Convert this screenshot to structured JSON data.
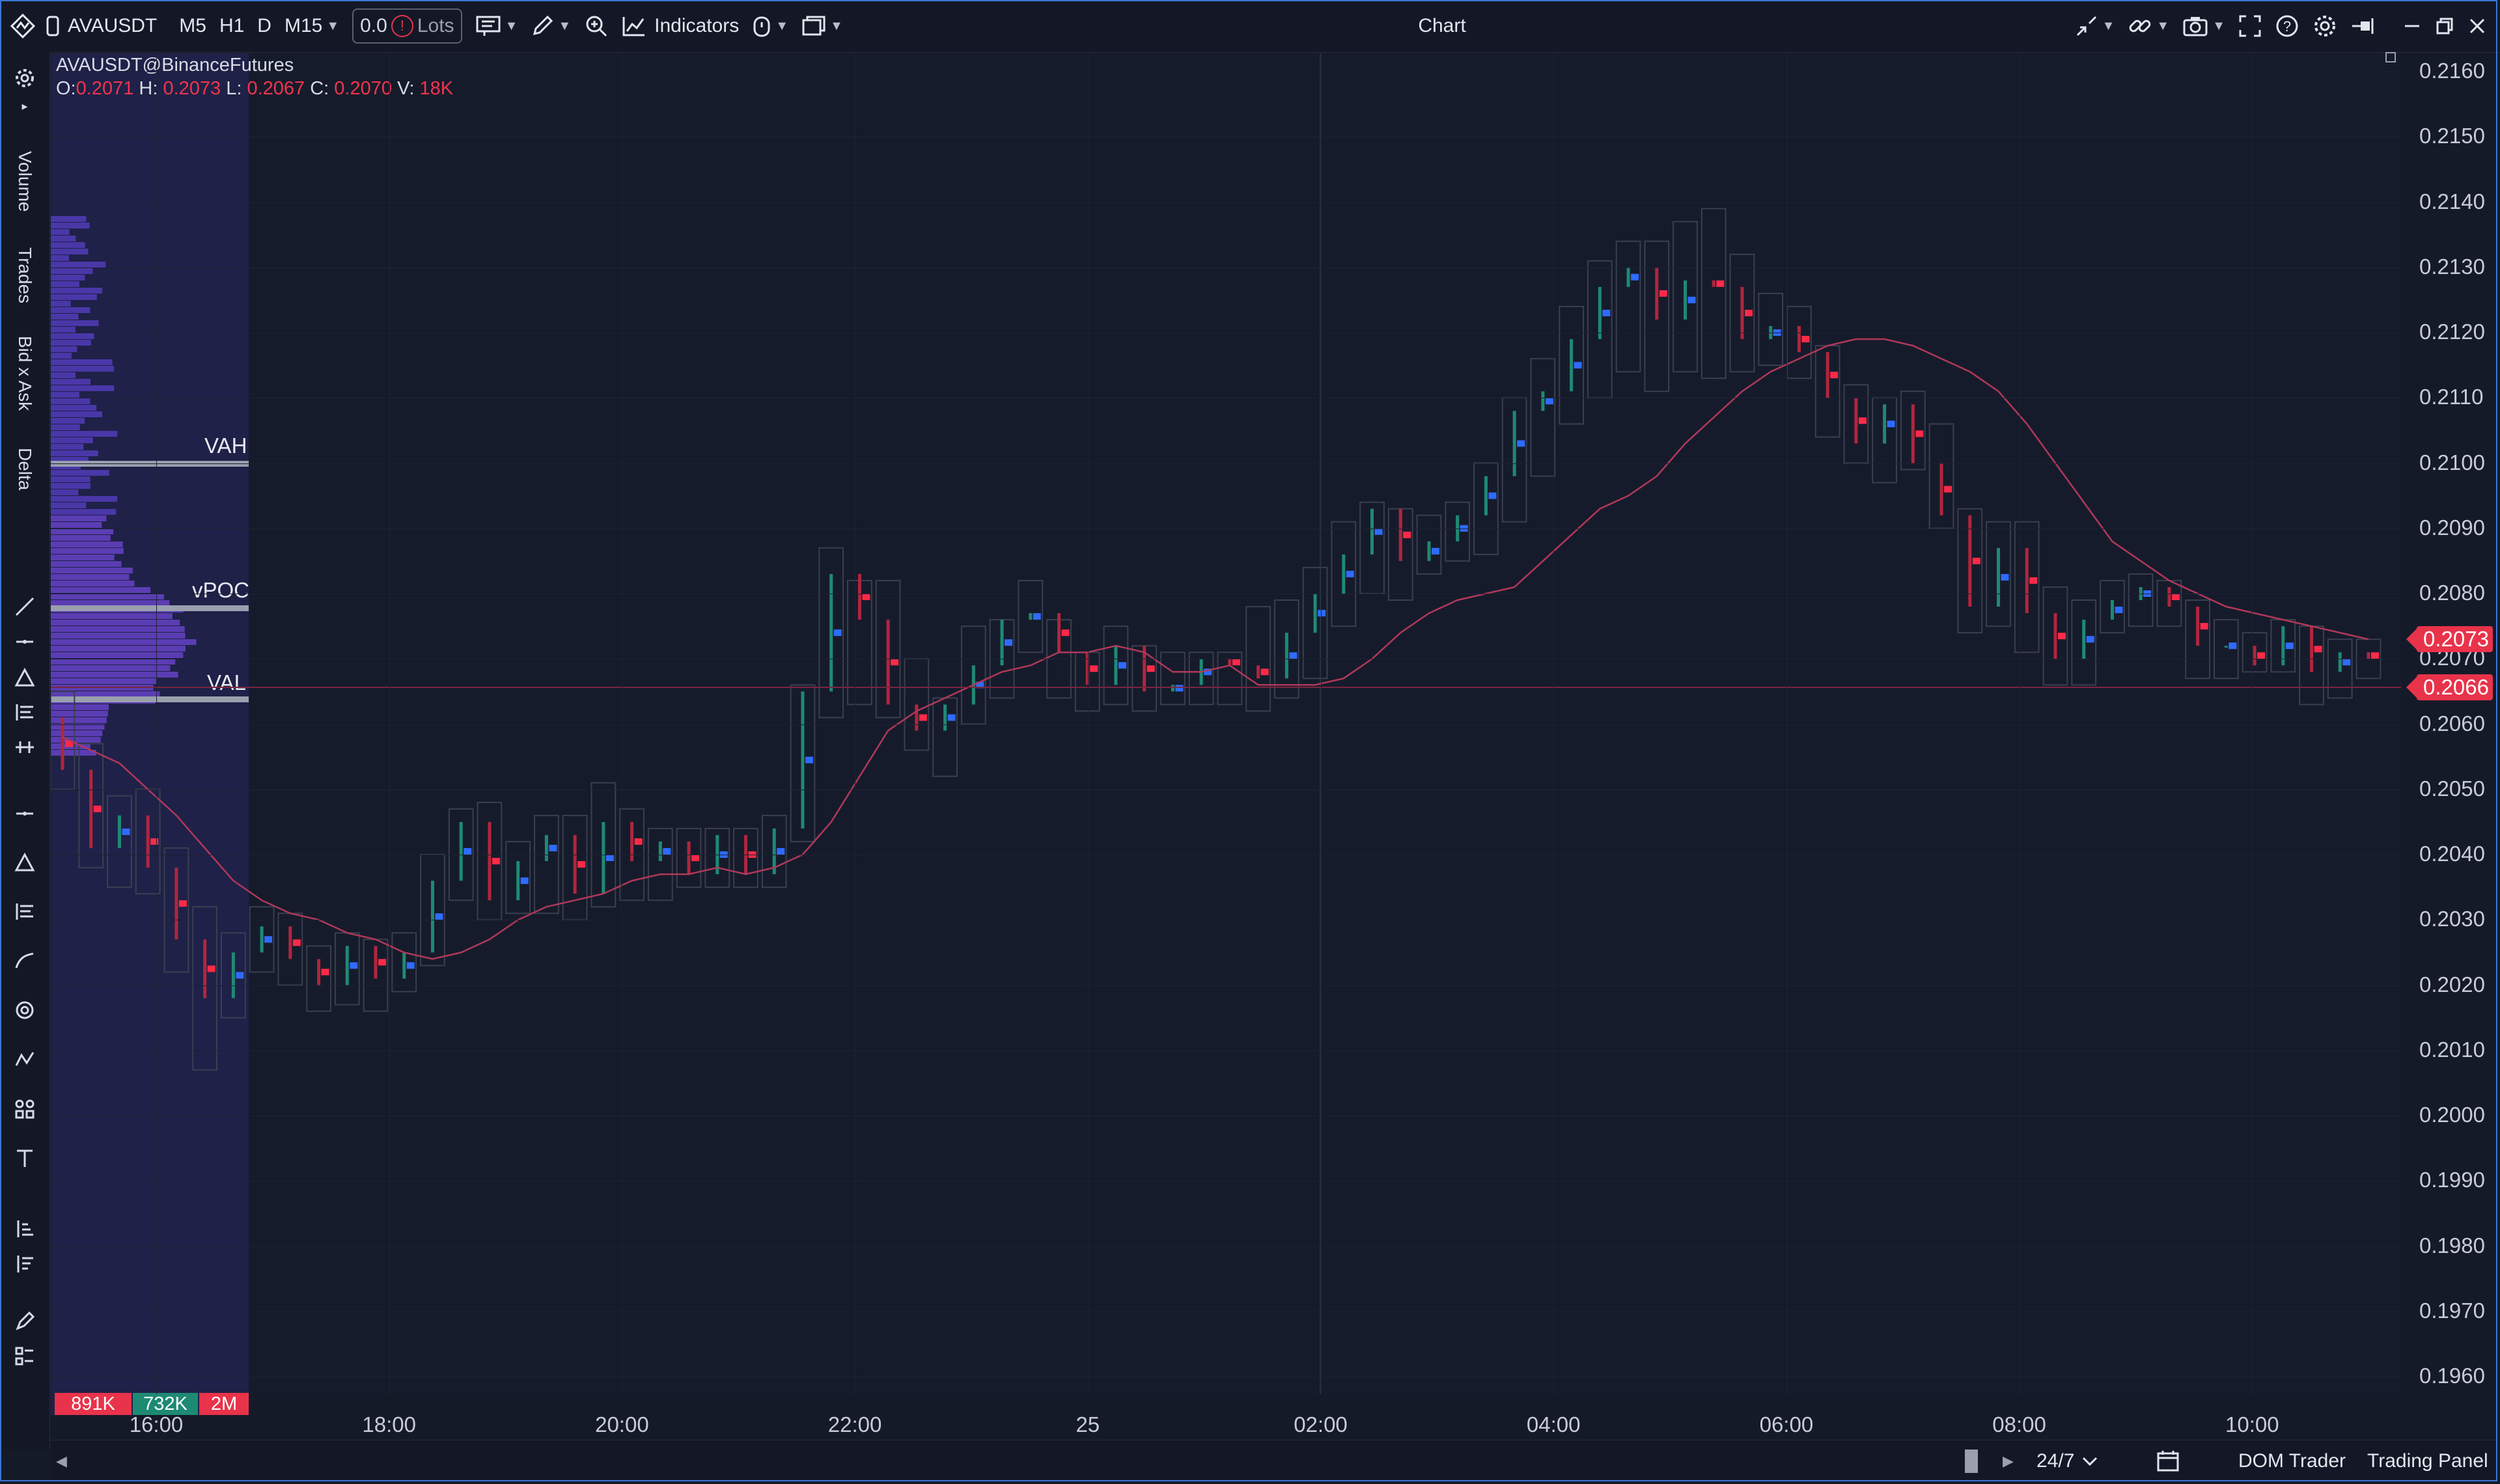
{
  "window": {
    "title": "Chart"
  },
  "toolbar": {
    "symbol": "AVAUSDT",
    "timeframes": [
      "M5",
      "H1",
      "D",
      "M15"
    ],
    "lots_value": "0.0",
    "lots_label": "Lots",
    "indicators_label": "Indicators"
  },
  "left_panel": {
    "tabs": [
      "Volume",
      "Trades",
      "Bid x Ask",
      "Delta"
    ]
  },
  "chart_header": {
    "instrument": "AVAUSDT@BinanceFutures",
    "o_label": "O:",
    "o": "0.2071",
    "h_label": "H:",
    "h": "0.2073",
    "l_label": "L:",
    "l": "0.2067",
    "c_label": "C:",
    "c": "0.2070",
    "v_label": "V:",
    "v": "18K"
  },
  "volume_profile": {
    "vah_label": "VAH",
    "vpoc_label": "vPOC",
    "val_label": "VAL",
    "vah": 0.21,
    "vpoc": 0.20777,
    "val": 0.20645,
    "stats": [
      {
        "text": "891K",
        "color": "#e8334a"
      },
      {
        "text": "732K",
        "color": "#1e8a74"
      },
      {
        "text": "2M",
        "color": "#e8334a"
      }
    ]
  },
  "price_badges": [
    {
      "text": "0.2073",
      "value": 0.2073
    },
    {
      "text": "0.2066",
      "value": 0.2066
    }
  ],
  "bottom": {
    "session": "24/7",
    "dom_trader": "DOM Trader",
    "trading_panel": "Trading Panel"
  },
  "chart_data": {
    "type": "candlestick",
    "instrument": "AVAUSDT@BinanceFutures",
    "timeframe": "M15",
    "y_ticks": [
      "0.2160",
      "0.2150",
      "0.2140",
      "0.2130",
      "0.2120",
      "0.2110",
      "0.2100",
      "0.2090",
      "0.2080",
      "0.2070",
      "0.2060",
      "0.2050",
      "0.2040",
      "0.2030",
      "0.2020",
      "0.2010",
      "0.2000",
      "0.1990",
      "0.1980",
      "0.1970",
      "0.1960"
    ],
    "ylim": [
      0.1955,
      0.2162
    ],
    "x_ticks": [
      "16:00",
      "18:00",
      "20:00",
      "22:00",
      "25",
      "02:00",
      "04:00",
      "06:00",
      "08:00",
      "10:00"
    ],
    "candles": [
      [
        0.2061,
        0.2053,
        0.2065,
        0.205
      ],
      [
        0.2053,
        0.2041,
        0.2057,
        0.2038
      ],
      [
        0.2041,
        0.2046,
        0.2049,
        0.2035
      ],
      [
        0.2046,
        0.2038,
        0.205,
        0.2034
      ],
      [
        0.2038,
        0.2027,
        0.2041,
        0.2022
      ],
      [
        0.2027,
        0.2018,
        0.2032,
        0.2007
      ],
      [
        0.2018,
        0.2025,
        0.2028,
        0.2015
      ],
      [
        0.2025,
        0.2029,
        0.2032,
        0.2022
      ],
      [
        0.2029,
        0.2024,
        0.2031,
        0.202
      ],
      [
        0.2024,
        0.202,
        0.2026,
        0.2016
      ],
      [
        0.202,
        0.2026,
        0.2028,
        0.2017
      ],
      [
        0.2026,
        0.2021,
        0.2027,
        0.2016
      ],
      [
        0.2021,
        0.2025,
        0.2028,
        0.2019
      ],
      [
        0.2025,
        0.2036,
        0.204,
        0.2023
      ],
      [
        0.2036,
        0.2045,
        0.2047,
        0.2033
      ],
      [
        0.2045,
        0.2033,
        0.2048,
        0.203
      ],
      [
        0.2033,
        0.2039,
        0.2042,
        0.2031
      ],
      [
        0.2039,
        0.2043,
        0.2046,
        0.2031
      ],
      [
        0.2043,
        0.2034,
        0.2046,
        0.203
      ],
      [
        0.2034,
        0.2045,
        0.2051,
        0.2032
      ],
      [
        0.2045,
        0.2039,
        0.2047,
        0.2033
      ],
      [
        0.2039,
        0.2042,
        0.2044,
        0.2033
      ],
      [
        0.2042,
        0.2037,
        0.2044,
        0.2035
      ],
      [
        0.2037,
        0.2043,
        0.2044,
        0.2035
      ],
      [
        0.2043,
        0.2037,
        0.2044,
        0.2035
      ],
      [
        0.2037,
        0.2044,
        0.2046,
        0.2035
      ],
      [
        0.2044,
        0.2065,
        0.2066,
        0.2042
      ],
      [
        0.2065,
        0.2083,
        0.2087,
        0.2061
      ],
      [
        0.2083,
        0.2076,
        0.2082,
        0.2063
      ],
      [
        0.2076,
        0.2063,
        0.2082,
        0.2061
      ],
      [
        0.2063,
        0.2059,
        0.207,
        0.2056
      ],
      [
        0.2059,
        0.2063,
        0.2064,
        0.2052
      ],
      [
        0.2063,
        0.2069,
        0.2075,
        0.206
      ],
      [
        0.2069,
        0.2076,
        0.2076,
        0.2064
      ],
      [
        0.2076,
        0.2077,
        0.2082,
        0.2071
      ],
      [
        0.2077,
        0.2071,
        0.2076,
        0.2064
      ],
      [
        0.2071,
        0.2066,
        0.2071,
        0.2062
      ],
      [
        0.2066,
        0.2072,
        0.2075,
        0.2063
      ],
      [
        0.2072,
        0.2065,
        0.2072,
        0.2062
      ],
      [
        0.2065,
        0.2066,
        0.2071,
        0.2063
      ],
      [
        0.2066,
        0.207,
        0.2071,
        0.2063
      ],
      [
        0.207,
        0.2069,
        0.2071,
        0.2063
      ],
      [
        0.2069,
        0.2067,
        0.2078,
        0.2062
      ],
      [
        0.2067,
        0.2074,
        0.2079,
        0.2064
      ],
      [
        0.2074,
        0.208,
        0.2084,
        0.2067
      ],
      [
        0.208,
        0.2086,
        0.2091,
        0.2075
      ],
      [
        0.2086,
        0.2093,
        0.2094,
        0.208
      ],
      [
        0.2093,
        0.2085,
        0.2093,
        0.2079
      ],
      [
        0.2085,
        0.2088,
        0.2092,
        0.2083
      ],
      [
        0.2088,
        0.2092,
        0.2094,
        0.2085
      ],
      [
        0.2092,
        0.2098,
        0.21,
        0.2086
      ],
      [
        0.2098,
        0.2108,
        0.211,
        0.2091
      ],
      [
        0.2108,
        0.2111,
        0.2116,
        0.2098
      ],
      [
        0.2111,
        0.2119,
        0.2124,
        0.2106
      ],
      [
        0.2119,
        0.2127,
        0.2131,
        0.211
      ],
      [
        0.2127,
        0.213,
        0.2134,
        0.2114
      ],
      [
        0.213,
        0.2122,
        0.2134,
        0.2111
      ],
      [
        0.2122,
        0.2128,
        0.2137,
        0.2114
      ],
      [
        0.2128,
        0.2127,
        0.2139,
        0.2113
      ],
      [
        0.2127,
        0.2119,
        0.2132,
        0.2114
      ],
      [
        0.2119,
        0.2121,
        0.2126,
        0.2115
      ],
      [
        0.2121,
        0.2117,
        0.2124,
        0.2113
      ],
      [
        0.2117,
        0.211,
        0.2118,
        0.2104
      ],
      [
        0.211,
        0.2103,
        0.2112,
        0.21
      ],
      [
        0.2103,
        0.2109,
        0.211,
        0.2097
      ],
      [
        0.2109,
        0.21,
        0.2111,
        0.2099
      ],
      [
        0.21,
        0.2092,
        0.2106,
        0.209
      ],
      [
        0.2092,
        0.2078,
        0.2093,
        0.2074
      ],
      [
        0.2078,
        0.2087,
        0.2091,
        0.2075
      ],
      [
        0.2087,
        0.2077,
        0.2091,
        0.2071
      ],
      [
        0.2077,
        0.207,
        0.2081,
        0.2066
      ],
      [
        0.207,
        0.2076,
        0.2079,
        0.2066
      ],
      [
        0.2076,
        0.2079,
        0.2082,
        0.2074
      ],
      [
        0.2079,
        0.2081,
        0.2083,
        0.2075
      ],
      [
        0.2081,
        0.2078,
        0.2082,
        0.2075
      ],
      [
        0.2078,
        0.2072,
        0.2079,
        0.2067
      ],
      [
        0.2072,
        0.2072,
        0.2076,
        0.2067
      ],
      [
        0.2072,
        0.2069,
        0.2074,
        0.2068
      ],
      [
        0.2069,
        0.2075,
        0.2076,
        0.2068
      ],
      [
        0.2075,
        0.2068,
        0.2075,
        0.2063
      ],
      [
        0.2068,
        0.2071,
        0.2073,
        0.2064
      ],
      [
        0.2071,
        0.207,
        0.2073,
        0.2067
      ]
    ],
    "moving_average": [
      0.2058,
      0.2056,
      0.2054,
      0.205,
      0.2046,
      0.2041,
      0.2036,
      0.2033,
      0.2031,
      0.203,
      0.2028,
      0.2027,
      0.2025,
      0.2024,
      0.2025,
      0.2027,
      0.203,
      0.2032,
      0.2033,
      0.2034,
      0.2036,
      0.2037,
      0.2037,
      0.2038,
      0.2037,
      0.2038,
      0.204,
      0.2045,
      0.2052,
      0.2059,
      0.2062,
      0.2064,
      0.2066,
      0.2068,
      0.2069,
      0.2071,
      0.2071,
      0.2072,
      0.2071,
      0.2068,
      0.2068,
      0.2069,
      0.2066,
      0.2066,
      0.2066,
      0.2067,
      0.207,
      0.2074,
      0.2077,
      0.2079,
      0.208,
      0.2081,
      0.2085,
      0.2089,
      0.2093,
      0.2095,
      0.2098,
      0.2103,
      0.2107,
      0.2111,
      0.2114,
      0.2116,
      0.2118,
      0.2119,
      0.2119,
      0.2118,
      0.2116,
      0.2114,
      0.2111,
      0.2106,
      0.21,
      0.2094,
      0.2088,
      0.2085,
      0.2082,
      0.208,
      0.2078,
      0.2077,
      0.2076,
      0.2075,
      0.2074,
      0.2073
    ],
    "current_price": 0.2066
  }
}
